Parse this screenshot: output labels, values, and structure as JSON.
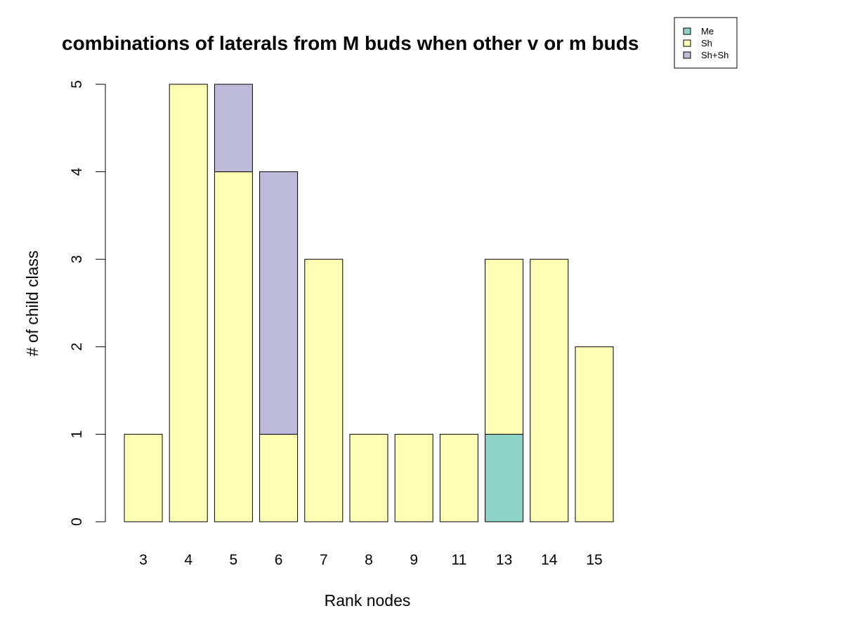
{
  "chart_data": {
    "type": "bar",
    "stacked": true,
    "title": "combinations of laterals from M buds when other v or m buds",
    "xlabel": "Rank nodes",
    "ylabel": "# of child class",
    "ylim": [
      0,
      5
    ],
    "yticks": [
      0,
      1,
      2,
      3,
      4,
      5
    ],
    "grid": false,
    "legend_position": "top-right",
    "categories": [
      "3",
      "4",
      "5",
      "6",
      "7",
      "8",
      "9",
      "11",
      "13",
      "14",
      "15"
    ],
    "series": [
      {
        "name": "Me",
        "color": "#8dd3c7",
        "values": [
          0,
          0,
          0,
          0,
          0,
          0,
          0,
          0,
          1,
          0,
          0
        ]
      },
      {
        "name": "Sh",
        "color": "#ffffb3",
        "values": [
          1,
          5,
          4,
          1,
          3,
          1,
          1,
          1,
          2,
          3,
          2
        ]
      },
      {
        "name": "Sh+Sh",
        "color": "#bebada",
        "values": [
          0,
          0,
          1,
          3,
          0,
          0,
          0,
          0,
          0,
          0,
          0
        ]
      }
    ]
  }
}
